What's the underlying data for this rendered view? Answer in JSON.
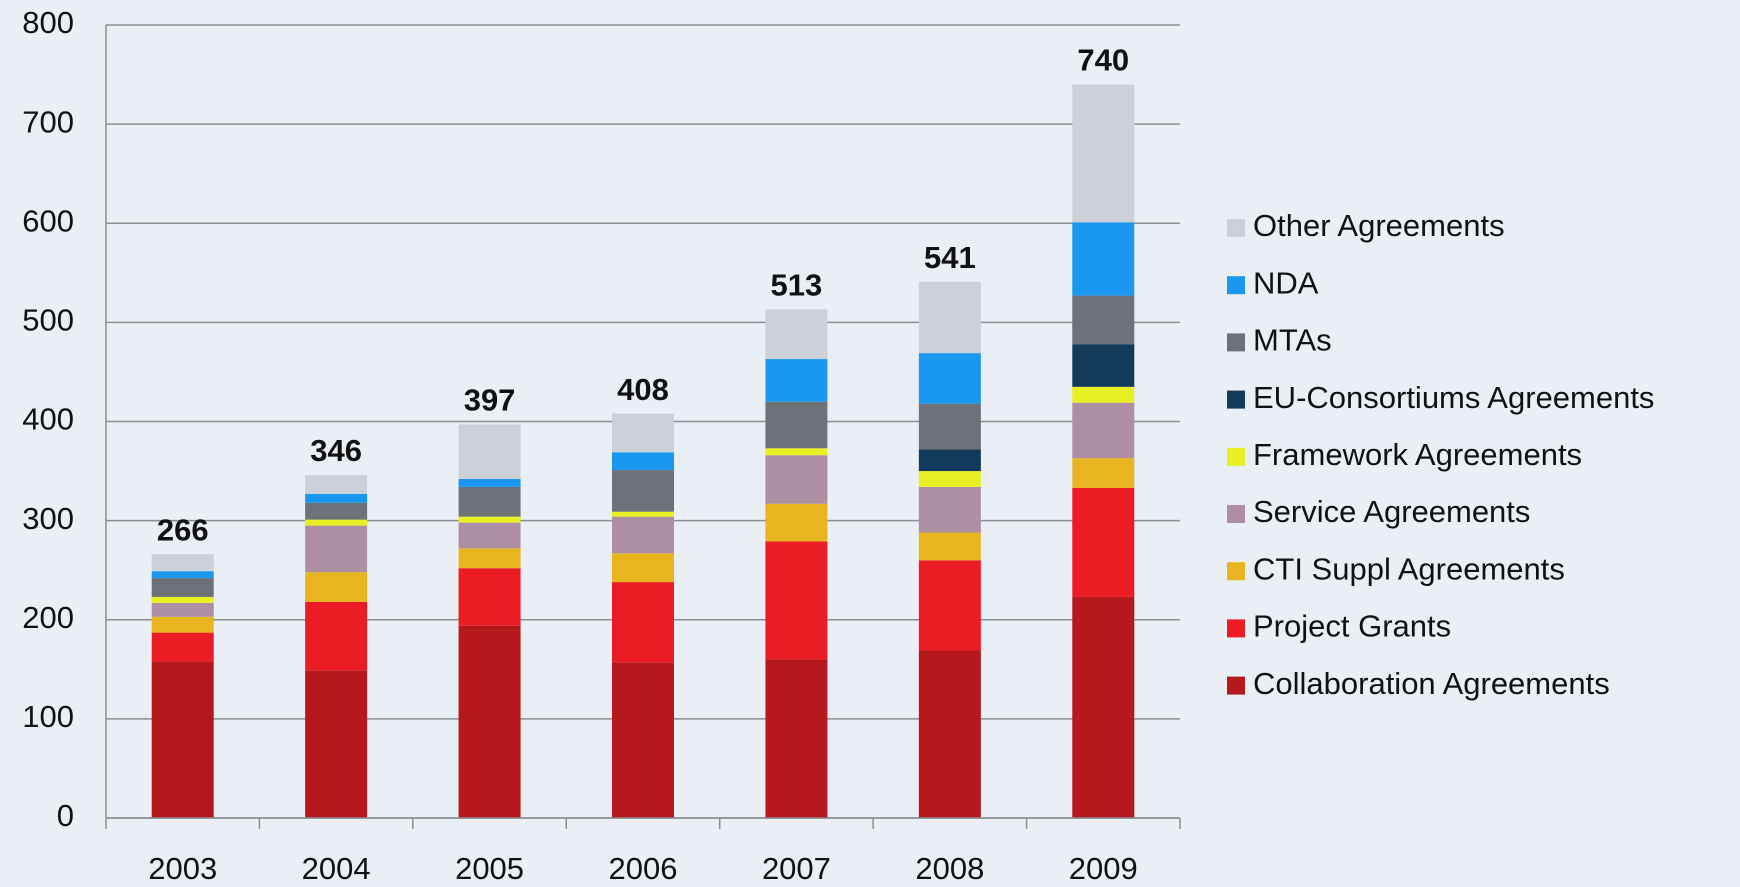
{
  "chart_data": {
    "type": "stacked_bar",
    "categories": [
      "2003",
      "2004",
      "2005",
      "2006",
      "2007",
      "2008",
      "2009"
    ],
    "series": [
      {
        "name": "Collaboration Agreements",
        "color": "#b5191e",
        "values": [
          158,
          149,
          194,
          157,
          160,
          169,
          223
        ]
      },
      {
        "name": "Project Grants",
        "color": "#ec1c24",
        "values": [
          29,
          69,
          58,
          81,
          119,
          91,
          110
        ]
      },
      {
        "name": "CTI Suppl Agreements",
        "color": "#e8b520",
        "values": [
          16,
          30,
          20,
          29,
          38,
          28,
          30
        ]
      },
      {
        "name": "Service Agreements",
        "color": "#ae8ea2",
        "values": [
          14,
          47,
          26,
          37,
          49,
          46,
          56
        ]
      },
      {
        "name": "Framework Agreements",
        "color": "#e8f024",
        "values": [
          6,
          6,
          6,
          5,
          7,
          16,
          16
        ]
      },
      {
        "name": "EU-Consortiums Agreements",
        "color": "#123a5a",
        "values": [
          0,
          0,
          0,
          0,
          0,
          22,
          43
        ]
      },
      {
        "name": "MTAs",
        "color": "#6d7178",
        "values": [
          19,
          17,
          30,
          42,
          47,
          46,
          49
        ]
      },
      {
        "name": "NDA",
        "color": "#1a98f0",
        "values": [
          7,
          9,
          8,
          18,
          43,
          51,
          74
        ]
      },
      {
        "name": "Other Agreements",
        "color": "#ccd1d9",
        "values": [
          17,
          19,
          55,
          39,
          50,
          72,
          139
        ]
      }
    ],
    "totals": [
      266,
      346,
      397,
      408,
      513,
      541,
      740
    ],
    "ylim": [
      0,
      800
    ],
    "yticks": [
      0,
      100,
      200,
      300,
      400,
      500,
      600,
      700,
      800
    ],
    "grid": true,
    "legend": "right"
  }
}
